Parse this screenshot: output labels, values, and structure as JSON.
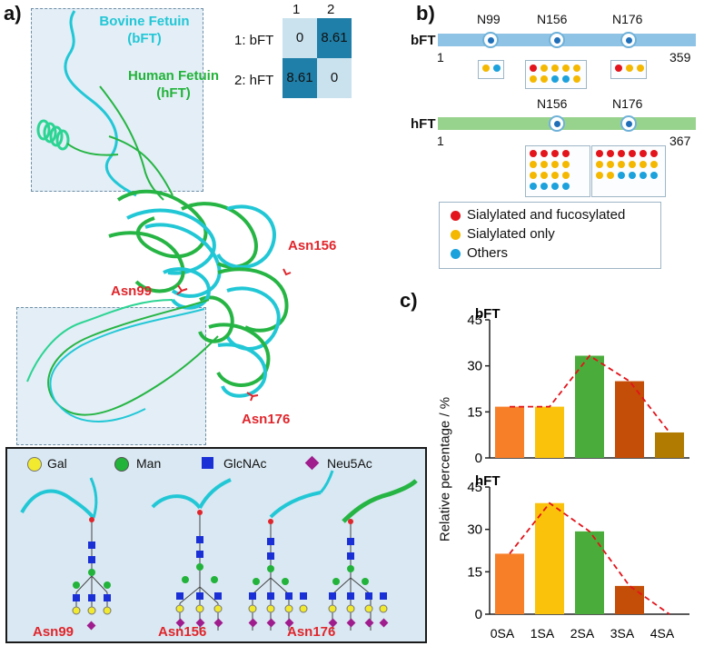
{
  "panels": {
    "a": "a)",
    "b": "b)",
    "c": "c)"
  },
  "structure": {
    "bovine_label": "Bovine Fetuin\n(bFT)",
    "human_label": "Human Fetuin\n(hFT)",
    "sites": [
      "Asn156",
      "Asn99",
      "Asn176"
    ]
  },
  "matrix": {
    "col_headers": [
      "1",
      "2"
    ],
    "row_labels": [
      "1: bFT",
      "2: hFT"
    ],
    "cells": [
      [
        "0",
        "8.61"
      ],
      [
        "8.61",
        "0"
      ]
    ],
    "colors": {
      "low": "#c9e2ee",
      "high": "#1f7fa8"
    }
  },
  "glycan_legend": {
    "items": [
      {
        "label": "Gal",
        "color": "#f2ea2e"
      },
      {
        "label": "Man",
        "color": "#22b33a"
      },
      {
        "label": "GlcNAc",
        "color": "#1a2fd6"
      },
      {
        "label": "Neu5Ac",
        "color": "#a01d8e"
      }
    ],
    "site_labels": [
      "Asn99",
      "Asn156",
      "Asn176"
    ]
  },
  "sequence_map": {
    "bft": {
      "name": "bFT",
      "start": "1",
      "end": "359",
      "color": "#8fc3e6",
      "sites": [
        "N99",
        "N156",
        "N176"
      ],
      "site_dots": [
        [
          "#f5b800",
          "#1ba1dc"
        ],
        [
          "#e3141b",
          "#f5b800",
          "#f5b800",
          "#f5b800",
          "#f5b800",
          "#f5b800",
          "#f5b800",
          "#1ba1dc",
          "#1ba1dc",
          "#f5b800"
        ],
        [
          "#e3141b",
          "#f5b800",
          "#f5b800"
        ]
      ]
    },
    "hft": {
      "name": "hFT",
      "start": "1",
      "end": "367",
      "color": "#98d38e",
      "sites": [
        "N156",
        "N176"
      ],
      "site_dots": [
        [
          "#e3141b",
          "#e3141b",
          "#e3141b",
          "#e3141b",
          "#f5b800",
          "#f5b800",
          "#f5b800",
          "#f5b800",
          "#f5b800",
          "#f5b800",
          "#f5b800",
          "#f5b800",
          "#1ba1dc",
          "#1ba1dc",
          "#1ba1dc",
          "#1ba1dc"
        ],
        [
          "#e3141b",
          "#e3141b",
          "#e3141b",
          "#e3141b",
          "#e3141b",
          "#e3141b",
          "#f5b800",
          "#f5b800",
          "#f5b800",
          "#f5b800",
          "#f5b800",
          "#f5b800",
          "#f5b800",
          "#f5b800",
          "#1ba1dc",
          "#1ba1dc",
          "#1ba1dc",
          "#1ba1dc"
        ]
      ]
    },
    "legend": [
      {
        "label": "Sialylated and fucosylated",
        "color": "#e3141b"
      },
      {
        "label": "Sialylated only",
        "color": "#f5b800"
      },
      {
        "label": "Others",
        "color": "#1ba1dc"
      }
    ]
  },
  "chart_data": [
    {
      "type": "bar",
      "title": "bFT",
      "categories": [
        "0SA",
        "1SA",
        "2SA",
        "3SA",
        "4SA"
      ],
      "values": [
        16.7,
        16.7,
        33.3,
        25.0,
        8.3
      ],
      "bar_colors": [
        "#f77f28",
        "#fbc20c",
        "#4aad3b",
        "#c44d07",
        "#b07b00"
      ],
      "trend_line": {
        "style": "dashed",
        "color": "#e3141b",
        "points": [
          16.7,
          16.7,
          33.3,
          25.0,
          8.3
        ]
      },
      "ylim": [
        0,
        45
      ],
      "yticks": [
        "0",
        "15",
        "30",
        "45"
      ]
    },
    {
      "type": "bar",
      "title": "hFT",
      "categories": [
        "0SA",
        "1SA",
        "2SA",
        "3SA",
        "4SA"
      ],
      "values": [
        21.4,
        39.3,
        29.3,
        10.0,
        0
      ],
      "bar_colors": [
        "#f77f28",
        "#fbc20c",
        "#4aad3b",
        "#c44d07",
        "#b07b00"
      ],
      "trend_line": {
        "style": "dashed",
        "color": "#e3141b",
        "points": [
          21.4,
          39.3,
          29.3,
          10.0,
          0
        ]
      },
      "ylim": [
        0,
        45
      ],
      "yticks": [
        "0",
        "15",
        "30",
        "45"
      ],
      "ylabel": "Relative percentage / %"
    }
  ]
}
